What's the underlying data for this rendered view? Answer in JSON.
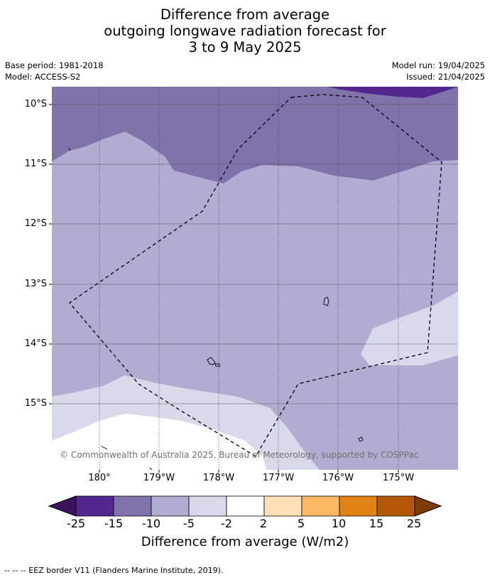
{
  "title": {
    "line1": "Difference from average",
    "line2": "outgoing longwave radiation forecast for",
    "line3": "3 to 9 May 2025"
  },
  "meta": {
    "base_period": "Base period: 1981-2018",
    "model": "Model: ACCESS-S2",
    "model_run": "Model run: 19/04/2025",
    "issued": "Issued: 21/04/2025"
  },
  "map": {
    "latitude_labels": [
      "10°S",
      "11°S",
      "12°S",
      "13°S",
      "14°S",
      "15°S"
    ],
    "longitude_labels": [
      "180°",
      "179°W",
      "178°W",
      "177°W",
      "176°W",
      "175°W"
    ],
    "copyright": "© Commonwealth of Australia 2025, Bureau of Meteorology, supported by COSPPac"
  },
  "legend": {
    "tick_labels": [
      "-25",
      "-15",
      "-10",
      "-5",
      "-2",
      "2",
      "5",
      "10",
      "15",
      "25"
    ],
    "colors": [
      "#3d1060",
      "#54278f",
      "#8073ac",
      "#b2abd2",
      "#d8daeb",
      "#ffffff",
      "#fee0b6",
      "#fdb863",
      "#e08214",
      "#b35806",
      "#7f3b08"
    ],
    "label": "Difference from average (W/m2)"
  },
  "footnote": "--  --  -- EEZ border V11 (Flanders Marine Institute, 2019)."
}
